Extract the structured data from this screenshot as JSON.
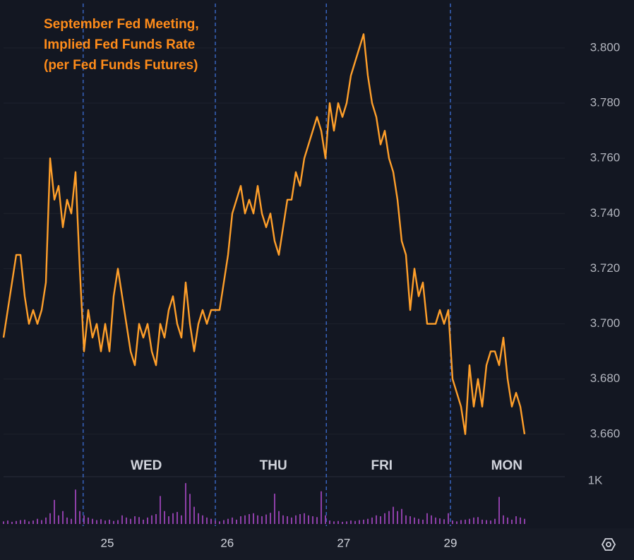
{
  "chart_data": {
    "type": "line",
    "annotation": [
      "September Fed Meeting,",
      "Implied Fed Funds Rate",
      "(per Fed Funds Futures)"
    ],
    "color": "#ff9f2a",
    "values": [
      3.695,
      3.705,
      3.715,
      3.725,
      3.725,
      3.71,
      3.7,
      3.705,
      3.7,
      3.705,
      3.715,
      3.76,
      3.745,
      3.75,
      3.735,
      3.745,
      3.74,
      3.755,
      3.72,
      3.69,
      3.705,
      3.695,
      3.7,
      3.69,
      3.7,
      3.69,
      3.71,
      3.72,
      3.71,
      3.7,
      3.69,
      3.685,
      3.7,
      3.695,
      3.7,
      3.69,
      3.685,
      3.7,
      3.695,
      3.705,
      3.71,
      3.7,
      3.695,
      3.715,
      3.7,
      3.69,
      3.7,
      3.705,
      3.7,
      3.705,
      3.705,
      3.705,
      3.715,
      3.725,
      3.74,
      3.745,
      3.75,
      3.74,
      3.745,
      3.74,
      3.75,
      3.74,
      3.735,
      3.74,
      3.73,
      3.725,
      3.735,
      3.745,
      3.745,
      3.755,
      3.75,
      3.76,
      3.765,
      3.77,
      3.775,
      3.77,
      3.76,
      3.78,
      3.77,
      3.78,
      3.775,
      3.78,
      3.79,
      3.795,
      3.8,
      3.805,
      3.79,
      3.78,
      3.775,
      3.765,
      3.77,
      3.76,
      3.755,
      3.745,
      3.73,
      3.725,
      3.705,
      3.72,
      3.71,
      3.715,
      3.7,
      3.7,
      3.7,
      3.705,
      3.7,
      3.705,
      3.68,
      3.675,
      3.67,
      3.66,
      3.685,
      3.67,
      3.68,
      3.67,
      3.685,
      3.69,
      3.69,
      3.685,
      3.695,
      3.68,
      3.67,
      3.675,
      3.67,
      3.66
    ],
    "xlim": [
      0,
      132.5
    ],
    "xticks": [
      {
        "value": 24.5,
        "label": "25"
      },
      {
        "value": 52.8,
        "label": "26"
      },
      {
        "value": 80.3,
        "label": "27"
      },
      {
        "value": 105.5,
        "label": "29"
      }
    ],
    "day_labels": [
      {
        "value": 33.7,
        "label": "WED"
      },
      {
        "value": 63.7,
        "label": "THU"
      },
      {
        "value": 89.3,
        "label": "FRI"
      },
      {
        "value": 118.8,
        "label": "MON"
      }
    ],
    "session_breaks": [
      18.8,
      50,
      76.2,
      105.5
    ],
    "ylim": [
      3.6446,
      3.8161
    ],
    "yticks": [
      {
        "value": 3.66,
        "label": "3.660"
      },
      {
        "value": 3.68,
        "label": "3.680"
      },
      {
        "value": 3.7,
        "label": "3.700"
      },
      {
        "value": 3.72,
        "label": "3.720"
      },
      {
        "value": 3.74,
        "label": "3.740"
      },
      {
        "value": 3.76,
        "label": "3.760"
      },
      {
        "value": 3.78,
        "label": "3.780"
      },
      {
        "value": 3.8,
        "label": "3.800"
      }
    ],
    "volume": {
      "color": "#8e3fa8",
      "ylim": [
        0,
        1100
      ],
      "yticks": [
        {
          "value": 1000,
          "label": "1K"
        }
      ],
      "values": [
        60,
        80,
        50,
        70,
        90,
        100,
        60,
        80,
        120,
        90,
        150,
        250,
        560,
        200,
        300,
        150,
        120,
        800,
        300,
        200,
        150,
        120,
        90,
        110,
        80,
        100,
        70,
        90,
        200,
        150,
        120,
        180,
        160,
        100,
        150,
        200,
        230,
        650,
        300,
        180,
        250,
        280,
        200,
        950,
        700,
        400,
        250,
        200,
        150,
        120,
        80,
        60,
        90,
        120,
        150,
        100,
        180,
        200,
        230,
        250,
        200,
        180,
        220,
        260,
        705,
        300,
        200,
        180,
        150,
        200,
        230,
        250,
        200,
        180,
        160,
        760,
        200,
        80,
        60,
        70,
        50,
        60,
        80,
        70,
        90,
        100,
        120,
        150,
        200,
        180,
        250,
        300,
        400,
        300,
        350,
        200,
        180,
        150,
        120,
        100,
        250,
        200,
        150,
        130,
        110,
        250,
        80,
        60,
        90,
        100,
        120,
        150,
        160,
        100,
        90,
        80,
        120,
        630,
        200,
        150,
        100,
        180,
        150,
        120
      ]
    }
  }
}
